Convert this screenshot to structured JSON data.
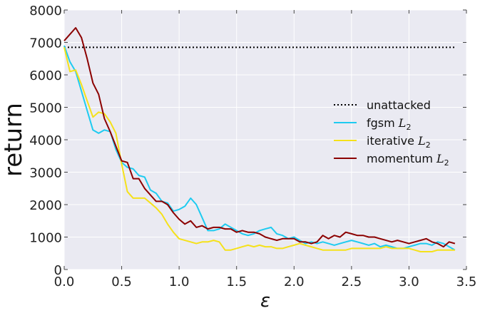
{
  "chart_data": {
    "type": "line",
    "title": "",
    "xlabel": "ε",
    "ylabel": "return",
    "xlim": [
      0,
      3.5
    ],
    "ylim": [
      0,
      8000
    ],
    "xticks": [
      0.0,
      0.5,
      1.0,
      1.5,
      2.0,
      2.5,
      3.0,
      3.5
    ],
    "xtick_labels": [
      "0.0",
      "0.5",
      "1.0",
      "1.5",
      "2.0",
      "2.5",
      "3.0",
      "3.5"
    ],
    "yticks": [
      0,
      1000,
      2000,
      3000,
      4000,
      5000,
      6000,
      7000,
      8000
    ],
    "ytick_labels": [
      "0",
      "1000",
      "2000",
      "3000",
      "4000",
      "5000",
      "6000",
      "7000",
      "8000"
    ],
    "grid": true,
    "legend_position": "right",
    "background_color": "#eaeaf2",
    "reference_line": {
      "name": "unattacked",
      "value": 6850,
      "x_range": [
        0,
        3.4
      ],
      "color": "#000000",
      "style": "dotted"
    },
    "series": [
      {
        "name": "fgsm",
        "subscript": "2",
        "color": "#1ecbf0",
        "points": [
          [
            0.0,
            6900
          ],
          [
            0.05,
            6400
          ],
          [
            0.1,
            6100
          ],
          [
            0.15,
            5500
          ],
          [
            0.2,
            4900
          ],
          [
            0.25,
            4300
          ],
          [
            0.3,
            4200
          ],
          [
            0.35,
            4300
          ],
          [
            0.4,
            4250
          ],
          [
            0.45,
            3700
          ],
          [
            0.5,
            3300
          ],
          [
            0.55,
            3150
          ],
          [
            0.6,
            3100
          ],
          [
            0.65,
            2900
          ],
          [
            0.7,
            2850
          ],
          [
            0.75,
            2450
          ],
          [
            0.8,
            2350
          ],
          [
            0.85,
            2100
          ],
          [
            0.9,
            2050
          ],
          [
            0.95,
            1800
          ],
          [
            1.0,
            1850
          ],
          [
            1.05,
            1950
          ],
          [
            1.1,
            2200
          ],
          [
            1.15,
            2000
          ],
          [
            1.2,
            1600
          ],
          [
            1.25,
            1200
          ],
          [
            1.3,
            1200
          ],
          [
            1.35,
            1250
          ],
          [
            1.4,
            1400
          ],
          [
            1.45,
            1300
          ],
          [
            1.5,
            1200
          ],
          [
            1.55,
            1100
          ],
          [
            1.6,
            1050
          ],
          [
            1.65,
            1100
          ],
          [
            1.7,
            1200
          ],
          [
            1.75,
            1250
          ],
          [
            1.8,
            1300
          ],
          [
            1.85,
            1100
          ],
          [
            1.9,
            1050
          ],
          [
            1.95,
            950
          ],
          [
            2.0,
            1000
          ],
          [
            2.05,
            900
          ],
          [
            2.1,
            800
          ],
          [
            2.15,
            850
          ],
          [
            2.2,
            800
          ],
          [
            2.25,
            850
          ],
          [
            2.3,
            800
          ],
          [
            2.35,
            750
          ],
          [
            2.4,
            800
          ],
          [
            2.45,
            850
          ],
          [
            2.5,
            900
          ],
          [
            2.55,
            850
          ],
          [
            2.6,
            800
          ],
          [
            2.65,
            750
          ],
          [
            2.7,
            800
          ],
          [
            2.75,
            700
          ],
          [
            2.8,
            750
          ],
          [
            2.85,
            700
          ],
          [
            2.9,
            650
          ],
          [
            2.95,
            650
          ],
          [
            3.0,
            700
          ],
          [
            3.05,
            750
          ],
          [
            3.1,
            800
          ],
          [
            3.15,
            800
          ],
          [
            3.2,
            750
          ],
          [
            3.25,
            850
          ],
          [
            3.3,
            800
          ],
          [
            3.35,
            700
          ],
          [
            3.4,
            600
          ]
        ]
      },
      {
        "name": "iterative",
        "subscript": "2",
        "color": "#f5e11a",
        "points": [
          [
            0.0,
            6850
          ],
          [
            0.05,
            6100
          ],
          [
            0.1,
            6150
          ],
          [
            0.15,
            5700
          ],
          [
            0.2,
            5200
          ],
          [
            0.25,
            4700
          ],
          [
            0.3,
            4850
          ],
          [
            0.35,
            4800
          ],
          [
            0.4,
            4550
          ],
          [
            0.45,
            4200
          ],
          [
            0.5,
            3250
          ],
          [
            0.55,
            2400
          ],
          [
            0.6,
            2200
          ],
          [
            0.65,
            2200
          ],
          [
            0.7,
            2200
          ],
          [
            0.75,
            2050
          ],
          [
            0.8,
            1900
          ],
          [
            0.85,
            1700
          ],
          [
            0.9,
            1400
          ],
          [
            0.95,
            1150
          ],
          [
            1.0,
            950
          ],
          [
            1.05,
            900
          ],
          [
            1.1,
            850
          ],
          [
            1.15,
            800
          ],
          [
            1.2,
            850
          ],
          [
            1.25,
            850
          ],
          [
            1.3,
            900
          ],
          [
            1.35,
            850
          ],
          [
            1.4,
            600
          ],
          [
            1.45,
            600
          ],
          [
            1.5,
            650
          ],
          [
            1.55,
            700
          ],
          [
            1.6,
            750
          ],
          [
            1.65,
            700
          ],
          [
            1.7,
            750
          ],
          [
            1.75,
            700
          ],
          [
            1.8,
            700
          ],
          [
            1.85,
            650
          ],
          [
            1.9,
            650
          ],
          [
            1.95,
            700
          ],
          [
            2.0,
            750
          ],
          [
            2.05,
            800
          ],
          [
            2.1,
            750
          ],
          [
            2.15,
            700
          ],
          [
            2.2,
            650
          ],
          [
            2.25,
            600
          ],
          [
            2.3,
            600
          ],
          [
            2.35,
            600
          ],
          [
            2.4,
            600
          ],
          [
            2.45,
            600
          ],
          [
            2.5,
            650
          ],
          [
            2.55,
            650
          ],
          [
            2.6,
            650
          ],
          [
            2.65,
            650
          ],
          [
            2.7,
            650
          ],
          [
            2.75,
            650
          ],
          [
            2.8,
            700
          ],
          [
            2.85,
            650
          ],
          [
            2.9,
            650
          ],
          [
            2.95,
            650
          ],
          [
            3.0,
            650
          ],
          [
            3.05,
            600
          ],
          [
            3.1,
            550
          ],
          [
            3.15,
            550
          ],
          [
            3.2,
            550
          ],
          [
            3.25,
            600
          ],
          [
            3.3,
            600
          ],
          [
            3.35,
            600
          ],
          [
            3.4,
            600
          ]
        ]
      },
      {
        "name": "momentum",
        "subscript": "2",
        "color": "#8b0000",
        "points": [
          [
            0.0,
            7050
          ],
          [
            0.05,
            7250
          ],
          [
            0.1,
            7450
          ],
          [
            0.15,
            7150
          ],
          [
            0.2,
            6500
          ],
          [
            0.25,
            5750
          ],
          [
            0.3,
            5400
          ],
          [
            0.35,
            4650
          ],
          [
            0.4,
            4250
          ],
          [
            0.45,
            3800
          ],
          [
            0.5,
            3350
          ],
          [
            0.55,
            3300
          ],
          [
            0.6,
            2800
          ],
          [
            0.65,
            2800
          ],
          [
            0.7,
            2500
          ],
          [
            0.75,
            2300
          ],
          [
            0.8,
            2100
          ],
          [
            0.85,
            2100
          ],
          [
            0.9,
            2000
          ],
          [
            0.95,
            1750
          ],
          [
            1.0,
            1550
          ],
          [
            1.05,
            1400
          ],
          [
            1.1,
            1500
          ],
          [
            1.15,
            1300
          ],
          [
            1.2,
            1350
          ],
          [
            1.25,
            1250
          ],
          [
            1.3,
            1300
          ],
          [
            1.35,
            1300
          ],
          [
            1.4,
            1250
          ],
          [
            1.45,
            1250
          ],
          [
            1.5,
            1150
          ],
          [
            1.55,
            1200
          ],
          [
            1.6,
            1150
          ],
          [
            1.65,
            1150
          ],
          [
            1.7,
            1100
          ],
          [
            1.75,
            1000
          ],
          [
            1.8,
            950
          ],
          [
            1.85,
            900
          ],
          [
            1.9,
            950
          ],
          [
            1.95,
            950
          ],
          [
            2.0,
            950
          ],
          [
            2.05,
            850
          ],
          [
            2.1,
            850
          ],
          [
            2.15,
            800
          ],
          [
            2.2,
            850
          ],
          [
            2.25,
            1050
          ],
          [
            2.3,
            950
          ],
          [
            2.35,
            1050
          ],
          [
            2.4,
            1000
          ],
          [
            2.45,
            1150
          ],
          [
            2.5,
            1100
          ],
          [
            2.55,
            1050
          ],
          [
            2.6,
            1050
          ],
          [
            2.65,
            1000
          ],
          [
            2.7,
            1000
          ],
          [
            2.75,
            950
          ],
          [
            2.8,
            900
          ],
          [
            2.85,
            850
          ],
          [
            2.9,
            900
          ],
          [
            2.95,
            850
          ],
          [
            3.0,
            800
          ],
          [
            3.05,
            850
          ],
          [
            3.1,
            900
          ],
          [
            3.15,
            950
          ],
          [
            3.2,
            850
          ],
          [
            3.25,
            800
          ],
          [
            3.3,
            700
          ],
          [
            3.35,
            850
          ],
          [
            3.4,
            800
          ]
        ]
      }
    ]
  }
}
